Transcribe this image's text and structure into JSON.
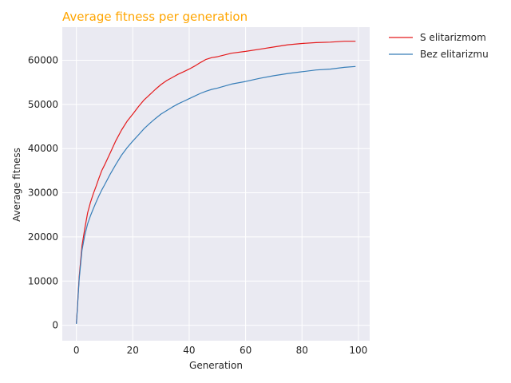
{
  "chart_data": {
    "type": "line",
    "title": "Average fitness per generation",
    "title_color": "#ffa500",
    "xlabel": "Generation",
    "ylabel": "Average fitness",
    "xlim": [
      -5,
      104
    ],
    "ylim": [
      -3500,
      67500
    ],
    "xticks": [
      0,
      20,
      40,
      60,
      80,
      100
    ],
    "xtick_labels": [
      "0",
      "20",
      "40",
      "60",
      "80",
      "100"
    ],
    "yticks": [
      0,
      10000,
      20000,
      30000,
      40000,
      50000,
      60000
    ],
    "ytick_labels": [
      "0",
      "10000",
      "20000",
      "30000",
      "40000",
      "50000",
      "60000"
    ],
    "grid": true,
    "background": "#eaeaf2",
    "legend_position": "outside-right",
    "series": [
      {
        "name": "S elitarizmom",
        "color": "#e41a1c",
        "x": [
          0,
          1,
          2,
          3,
          4,
          5,
          6,
          7,
          8,
          9,
          10,
          12,
          14,
          16,
          18,
          20,
          22,
          24,
          26,
          28,
          30,
          32,
          34,
          36,
          38,
          40,
          42,
          44,
          46,
          48,
          50,
          55,
          60,
          65,
          70,
          75,
          80,
          85,
          90,
          95,
          99
        ],
        "values": [
          500,
          11000,
          18000,
          22000,
          25500,
          27800,
          29800,
          31500,
          33300,
          35000,
          36300,
          39000,
          41800,
          44200,
          46200,
          47800,
          49500,
          51000,
          52200,
          53400,
          54500,
          55400,
          56100,
          56800,
          57400,
          58000,
          58700,
          59500,
          60200,
          60600,
          60800,
          61600,
          62000,
          62500,
          63000,
          63500,
          63800,
          64000,
          64100,
          64300,
          64300
        ]
      },
      {
        "name": "Bez elitarizmu",
        "color": "#377eb8",
        "x": [
          0,
          1,
          2,
          3,
          4,
          5,
          6,
          7,
          8,
          9,
          10,
          12,
          14,
          16,
          18,
          20,
          22,
          24,
          26,
          28,
          30,
          32,
          34,
          36,
          38,
          40,
          42,
          44,
          46,
          48,
          50,
          55,
          60,
          65,
          70,
          75,
          80,
          85,
          90,
          95,
          99
        ],
        "values": [
          300,
          10500,
          17000,
          20500,
          23000,
          24800,
          26400,
          27900,
          29300,
          30600,
          31800,
          34200,
          36400,
          38500,
          40200,
          41700,
          43100,
          44500,
          45700,
          46800,
          47800,
          48600,
          49400,
          50100,
          50700,
          51300,
          51900,
          52500,
          53000,
          53400,
          53700,
          54600,
          55200,
          55900,
          56500,
          57000,
          57400,
          57800,
          58000,
          58400,
          58600
        ]
      }
    ]
  }
}
